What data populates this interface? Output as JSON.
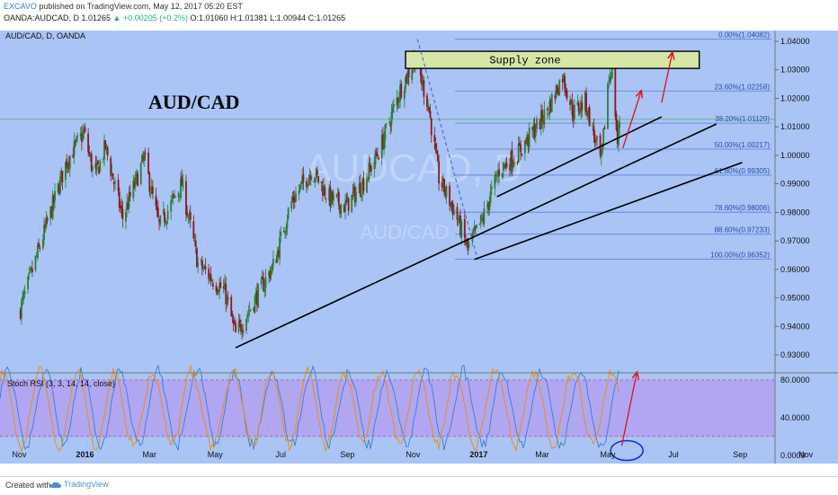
{
  "header": {
    "author": "EXCAVO",
    "published": " published on TradingView.com, May 12, 2017 05:20 EST",
    "symbol_line": "OANDA:AUDCAD, D  1.01265  ",
    "change": "▲ +0.00205 (+0.2%)",
    "ohlc": " O:1.01060  H:1.01381  L:1.00944  C:1.01265"
  },
  "footer": {
    "created_with": "Created with",
    "brand": "TradingView"
  },
  "colors": {
    "background": "#a9c4f5",
    "rsi_band": "#b39af0",
    "up_candle": "#2e7d32",
    "down_candle": "#8b1a1a",
    "supply_fill": "#d5e6a8",
    "arrow": "#e0101a",
    "fib_line": "#5b7fd6",
    "trendline": "#000000"
  },
  "chart_data": [
    {
      "type": "candlestick",
      "panel": "price",
      "symbol_label": "AUD/CAD, D, OANDA",
      "title": "AUD/CAD",
      "watermark": [
        "AUDCAD, D",
        "AUD/CAD"
      ],
      "y_axis": {
        "ylim": [
          0.925,
          1.045
        ],
        "ticks": [
          "0.93000",
          "0.94000",
          "0.95000",
          "0.96000",
          "0.97000",
          "0.98000",
          "0.99000",
          "1.00000",
          "1.01000",
          "1.02000",
          "1.03000",
          "1.04000"
        ],
        "position": "right"
      },
      "x_axis": {
        "ticks": [
          "Nov",
          "2016",
          "Mar",
          "May",
          "Jul",
          "Sep",
          "Nov",
          "2017",
          "Mar",
          "May",
          "Jul",
          "Sep",
          "Nov"
        ]
      },
      "close_path": [
        [
          "2015-11-01",
          0.945
        ],
        [
          "2015-11-20",
          0.968
        ],
        [
          "2015-12-15",
          0.998
        ],
        [
          "2015-12-31",
          1.008
        ],
        [
          "2016-01-10",
          0.992
        ],
        [
          "2016-01-20",
          1.003
        ],
        [
          "2016-02-05",
          0.978
        ],
        [
          "2016-02-25",
          0.999
        ],
        [
          "2016-03-10",
          0.975
        ],
        [
          "2016-03-31",
          0.99
        ],
        [
          "2016-04-15",
          0.962
        ],
        [
          "2016-05-10",
          0.952
        ],
        [
          "2016-05-20",
          0.937
        ],
        [
          "2016-06-05",
          0.948
        ],
        [
          "2016-06-25",
          0.962
        ],
        [
          "2016-07-10",
          0.983
        ],
        [
          "2016-07-30",
          0.995
        ],
        [
          "2016-08-15",
          0.985
        ],
        [
          "2016-08-30",
          0.982
        ],
        [
          "2016-09-15",
          0.99
        ],
        [
          "2016-10-01",
          1.002
        ],
        [
          "2016-10-20",
          1.023
        ],
        [
          "2016-11-03",
          1.034
        ],
        [
          "2016-11-15",
          1.018
        ],
        [
          "2016-11-25",
          0.992
        ],
        [
          "2016-12-10",
          0.98
        ],
        [
          "2016-12-22",
          0.967
        ],
        [
          "2017-01-05",
          0.978
        ],
        [
          "2017-01-20",
          0.995
        ],
        [
          "2017-02-05",
          1.0
        ],
        [
          "2017-02-20",
          1.008
        ],
        [
          "2017-03-05",
          1.015
        ],
        [
          "2017-03-20",
          1.028
        ],
        [
          "2017-03-30",
          1.015
        ],
        [
          "2017-04-10",
          1.019
        ],
        [
          "2017-04-25",
          0.997
        ],
        [
          "2017-05-01",
          1.025
        ],
        [
          "2017-05-05",
          1.032
        ],
        [
          "2017-05-10",
          1.004
        ],
        [
          "2017-05-12",
          1.01265
        ]
      ],
      "fibonacci": [
        {
          "label": "0.00%(1.04082)",
          "value": 1.04082
        },
        {
          "label": "23.60%(1.02258)",
          "value": 1.02258
        },
        {
          "label": "38.20%(1.01129)",
          "value": 1.01129
        },
        {
          "label": "50.00%(1.00217)",
          "value": 1.00217
        },
        {
          "label": "61.80%(0.99305)",
          "value": 0.99305
        },
        {
          "label": "78.60%(0.98006)",
          "value": 0.98006
        },
        {
          "label": "88.60%(0.97233)",
          "value": 0.97233
        },
        {
          "label": "100.00%(0.96352)",
          "value": 0.96352
        }
      ],
      "horizontal_line": 1.01265,
      "supply_zone": {
        "label": "Supply zone",
        "from_date": "2016-10-25",
        "to_date": "2017-07-25",
        "y_low": 1.0305,
        "y_high": 1.0365
      },
      "trendlines": [
        {
          "from": [
            "2016-05-20",
            0.9325
          ],
          "to": [
            "2017-08-10",
            1.011
          ]
        },
        {
          "from": [
            "2017-01-18",
            0.9855
          ],
          "to": [
            "2017-06-20",
            1.0135
          ]
        },
        {
          "from": [
            "2016-12-28",
            0.9635
          ],
          "to": [
            "2017-09-03",
            0.9975
          ]
        }
      ],
      "fib_drawn_line": {
        "from": [
          "2016-11-05",
          1.0408
        ],
        "to": [
          "2016-12-31",
          0.9635
        ]
      },
      "arrows": [
        {
          "from": [
            "2017-05-15",
            1.0025
          ],
          "to": [
            "2017-06-01",
            1.0225
          ]
        },
        {
          "from": [
            "2017-06-20",
            1.0185
          ],
          "to": [
            "2017-06-30",
            1.036
          ]
        }
      ],
      "legend": "none",
      "grid": false
    },
    {
      "type": "line",
      "panel": "oscillator",
      "title": "Stoch RSI (3, 3, 14, 14, close)",
      "ylim": [
        -5,
        100
      ],
      "y_ticks": [
        "0.0000",
        "40.0000",
        "80.0000"
      ],
      "band": [
        20,
        80
      ],
      "series": [
        {
          "color": "#3b7dd8"
        },
        {
          "color": "#f08c00"
        }
      ],
      "circle_annotation": {
        "date": "2017-05-12",
        "value": 5
      },
      "arrow": {
        "from": [
          "2017-05-14",
          10
        ],
        "to": [
          "2017-05-28",
          88
        ]
      }
    }
  ]
}
